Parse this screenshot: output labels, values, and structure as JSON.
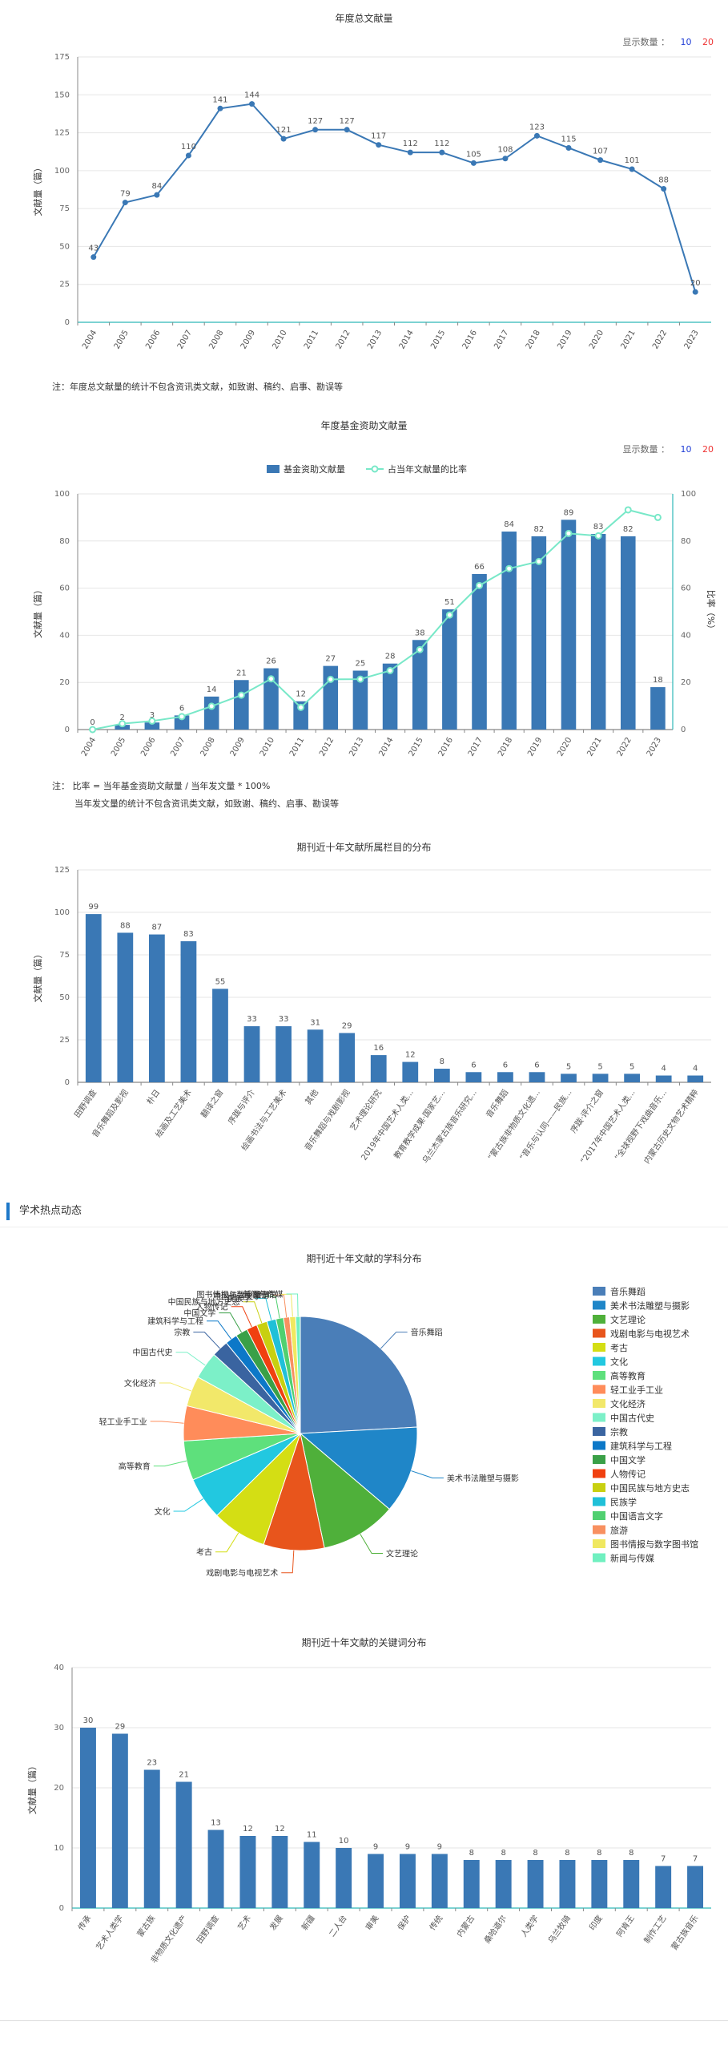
{
  "charts": {
    "total": {
      "title": "年度总文献量",
      "count_label": "显示数量 ：",
      "count_options": [
        "10",
        "20"
      ],
      "note": "注：年度总文献量的统计不包含资讯类文献，如致谢、稿约、启事、勘误等"
    },
    "fund": {
      "title": "年度基金资助文献量",
      "count_label": "显示数量 ：",
      "count_options": [
        "10",
        "20"
      ],
      "note_line1": "注：  比率 = 当年基金资助文献量 / 当年发文量 * 100%",
      "note_line2": "当年发文量的统计不包含资讯类文献，如致谢、稿约、启事、勘误等"
    },
    "columns": {
      "title": "期刊近十年文献所属栏目的分布"
    },
    "section": {
      "title": "学术热点动态"
    },
    "subjects": {
      "title": "期刊近十年文献的学科分布"
    },
    "keywords": {
      "title": "期刊近十年文献的关键词分布"
    }
  },
  "chart_data": [
    {
      "id": "total",
      "type": "line",
      "title": "年度总文献量",
      "ylabel": "文献量（篇）",
      "ylim": [
        0,
        175
      ],
      "yticks": [
        0,
        25,
        50,
        75,
        100,
        125,
        150,
        175
      ],
      "categories": [
        "2004",
        "2005",
        "2006",
        "2007",
        "2008",
        "2009",
        "2010",
        "2011",
        "2012",
        "2013",
        "2014",
        "2015",
        "2016",
        "2017",
        "2018",
        "2019",
        "2020",
        "2021",
        "2022",
        "2023"
      ],
      "values": [
        43,
        79,
        84,
        110,
        141,
        144,
        121,
        127,
        127,
        117,
        112,
        112,
        105,
        108,
        123,
        115,
        107,
        101,
        88,
        20
      ],
      "color": "#3a78b5",
      "grid": true
    },
    {
      "id": "fund",
      "type": "bar",
      "title": "年度基金资助文献量",
      "ylabel": "文献量（篇）",
      "ylabel_right": "比率（%）",
      "ylim": [
        0,
        100
      ],
      "ylim_right": [
        0,
        100
      ],
      "yticks": [
        0,
        20,
        40,
        60,
        80,
        100
      ],
      "categories": [
        "2004",
        "2005",
        "2006",
        "2007",
        "2008",
        "2009",
        "2010",
        "2011",
        "2012",
        "2013",
        "2014",
        "2015",
        "2016",
        "2017",
        "2018",
        "2019",
        "2020",
        "2021",
        "2022",
        "2023"
      ],
      "series": [
        {
          "name": "基金资助文献量",
          "type": "bar",
          "color": "#3a78b5",
          "values": [
            0,
            2,
            3,
            6,
            14,
            21,
            26,
            12,
            27,
            25,
            28,
            38,
            51,
            66,
            84,
            82,
            89,
            83,
            82,
            18
          ]
        },
        {
          "name": "占当年文献量的比率",
          "type": "line",
          "color": "#78e8c8",
          "axis": "right",
          "values": [
            0,
            2.5,
            3.6,
            5.5,
            9.9,
            14.6,
            21.5,
            9.4,
            21.3,
            21.4,
            25,
            33.9,
            48.6,
            61.1,
            68.3,
            71.3,
            83.2,
            82.2,
            93.2,
            90
          ]
        }
      ],
      "legend_position": "top-center",
      "grid": true
    },
    {
      "id": "columns",
      "type": "bar",
      "title": "期刊近十年文献所属栏目的分布",
      "ylabel": "文献量（篇）",
      "ylim": [
        0,
        125
      ],
      "yticks": [
        0,
        25,
        50,
        75,
        100,
        125
      ],
      "categories": [
        "田野调查",
        "音乐舞蹈及影视",
        "朴日",
        "绘画及工艺美术",
        "翻译之窗",
        "序跋与评介",
        "绘画书法与工艺美术",
        "其他",
        "音乐舞蹈与戏剧影视",
        "艺术理论研究",
        "2019年中国艺术人类...",
        "教育教学成果·国家艺...",
        "乌兰杰蒙古族音乐研究...",
        "音乐舞蹈",
        "“蒙古族非物质文化遗...",
        "“音乐与认同——民族...",
        "序跋·评介之窗",
        "“2017年中国艺术人类...",
        "“全球视野下戏曲音乐...",
        "内蒙古历史文物艺术精粹"
      ],
      "values": [
        99,
        88,
        87,
        83,
        55,
        33,
        33,
        31,
        29,
        16,
        12,
        8,
        6,
        6,
        6,
        5,
        5,
        5,
        4,
        4
      ],
      "color": "#3a78b5",
      "grid": true
    },
    {
      "id": "subjects",
      "type": "pie",
      "title": "期刊近十年文献的学科分布",
      "labels": [
        "音乐舞蹈",
        "美术书法雕塑与摄影",
        "文艺理论",
        "戏剧电影与电视艺术",
        "考古",
        "文化",
        "高等教育",
        "轻工业手工业",
        "文化经济",
        "中国古代史",
        "宗教",
        "建筑科学与工程",
        "中国文学",
        "人物传记",
        "中国民族与地方史志",
        "民族学",
        "中国语言文字",
        "旅游",
        "图书情报与数字图书馆",
        "新闻与传媒"
      ],
      "values": [
        230,
        115,
        100,
        80,
        72,
        56,
        52,
        46,
        40,
        36,
        22,
        16,
        16,
        14,
        14,
        12,
        10,
        8,
        8,
        6
      ],
      "colors": [
        "#4a7eb8",
        "#1f86c8",
        "#4fb03a",
        "#e8551c",
        "#d4de14",
        "#22c8e0",
        "#5ee07c",
        "#ff8c5a",
        "#f2e86a",
        "#7cf0c8",
        "#3a64a0",
        "#0c78c8",
        "#3aa048",
        "#f04010",
        "#c8d010",
        "#20c0d8",
        "#50d070",
        "#f89060",
        "#f0e860",
        "#70f0c0"
      ],
      "legend_position": "right"
    },
    {
      "id": "keywords",
      "type": "bar",
      "title": "期刊近十年文献的关键词分布",
      "ylabel": "文献量（篇）",
      "ylim": [
        0,
        40
      ],
      "yticks": [
        0,
        10,
        20,
        30,
        40
      ],
      "categories": [
        "传承",
        "艺术人类学",
        "蒙古族",
        "非物质文化遗产",
        "田野调查",
        "艺术",
        "发展",
        "新疆",
        "二人台",
        "审美",
        "保护",
        "传统",
        "内蒙古",
        "桑哈道尔",
        "人类学",
        "乌兰牧骑",
        "印度",
        "阿肯王",
        "制作工艺",
        "蒙古族音乐"
      ],
      "values": [
        30,
        29,
        23,
        21,
        13,
        12,
        12,
        11,
        10,
        9,
        9,
        9,
        8,
        8,
        8,
        8,
        8,
        8,
        7,
        7
      ],
      "color": "#3a78b5",
      "grid": true
    }
  ]
}
